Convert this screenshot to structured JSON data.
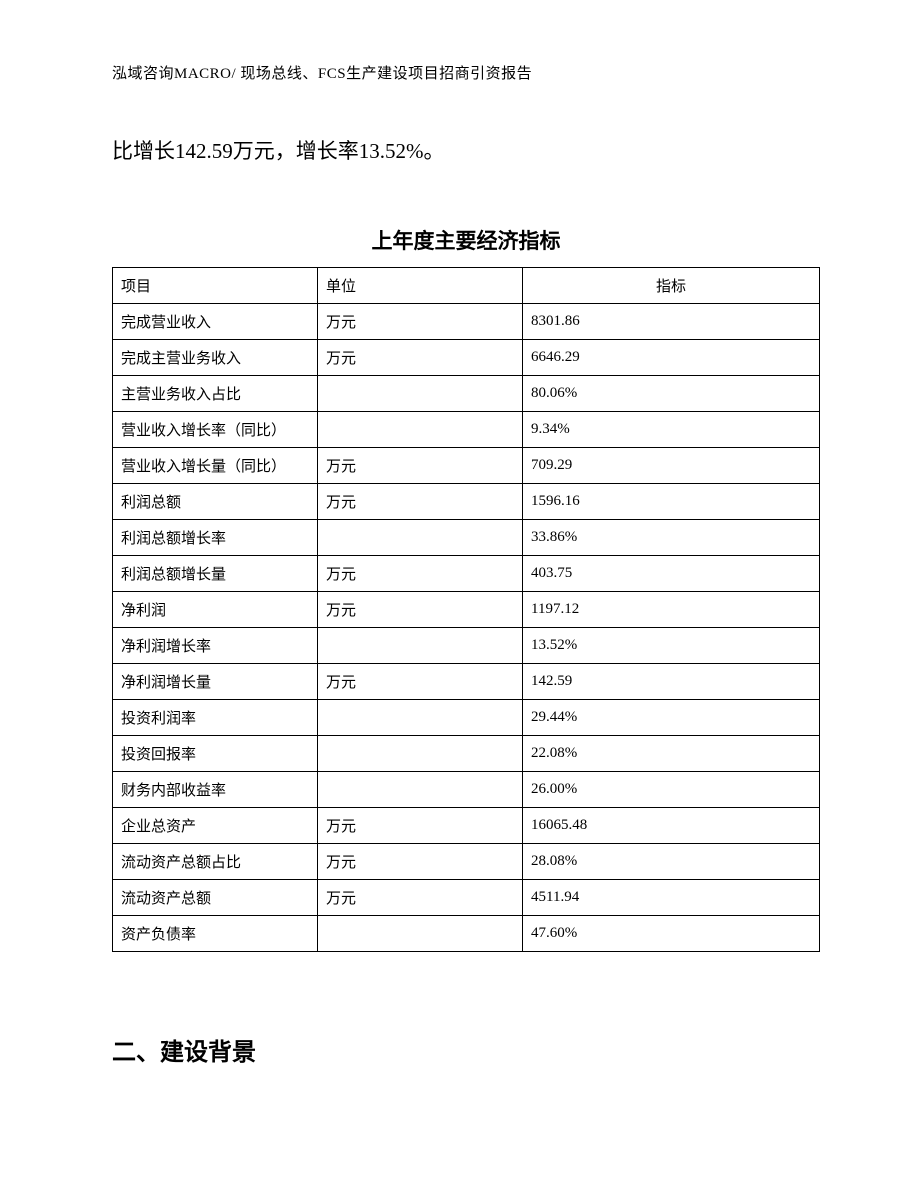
{
  "header": "泓域咨询MACRO/ 现场总线、FCS生产建设项目招商引资报告",
  "intro": "比增长142.59万元，增长率13.52%。",
  "table": {
    "title": "上年度主要经济指标",
    "columns": [
      "项目",
      "单位",
      "指标"
    ],
    "rows": [
      [
        "完成营业收入",
        "万元",
        "8301.86"
      ],
      [
        "完成主营业务收入",
        "万元",
        "6646.29"
      ],
      [
        "主营业务收入占比",
        "",
        "80.06%"
      ],
      [
        "营业收入增长率（同比）",
        "",
        "9.34%"
      ],
      [
        "营业收入增长量（同比）",
        "万元",
        "709.29"
      ],
      [
        "利润总额",
        "万元",
        "1596.16"
      ],
      [
        "利润总额增长率",
        "",
        "33.86%"
      ],
      [
        "利润总额增长量",
        "万元",
        "403.75"
      ],
      [
        "净利润",
        "万元",
        "1197.12"
      ],
      [
        "净利润增长率",
        "",
        "13.52%"
      ],
      [
        "净利润增长量",
        "万元",
        "142.59"
      ],
      [
        "投资利润率",
        "",
        "29.44%"
      ],
      [
        "投资回报率",
        "",
        "22.08%"
      ],
      [
        "财务内部收益率",
        "",
        "26.00%"
      ],
      [
        "企业总资产",
        "万元",
        "16065.48"
      ],
      [
        "流动资产总额占比",
        "万元",
        "28.08%"
      ],
      [
        "流动资产总额",
        "万元",
        "4511.94"
      ],
      [
        "资产负债率",
        "",
        "47.60%"
      ]
    ]
  },
  "sectionHeading": "二、建设背景"
}
